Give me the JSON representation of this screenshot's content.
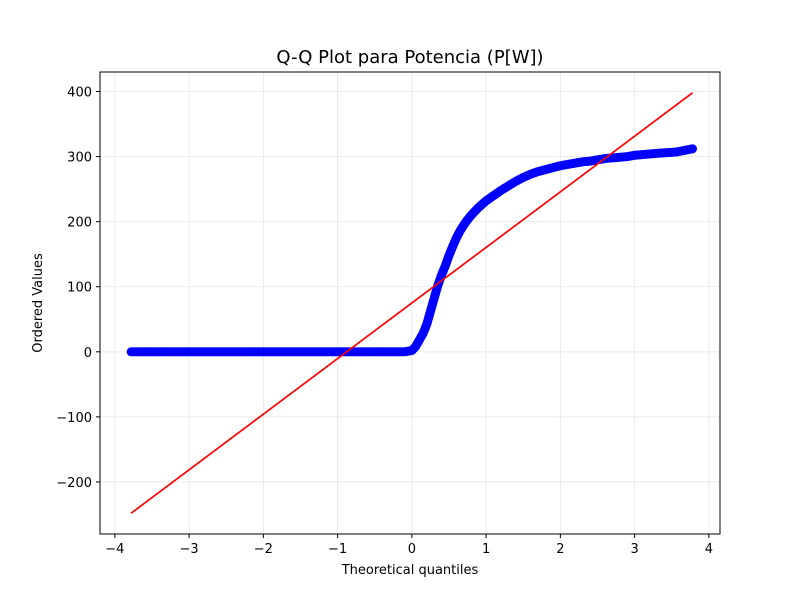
{
  "chart_data": {
    "type": "scatter",
    "title": "Q-Q Plot para Potencia (P[W])",
    "xlabel": "Theoretical quantiles",
    "ylabel": "Ordered Values",
    "xlim": [
      -4.2,
      4.15
    ],
    "ylim": [
      -280,
      430
    ],
    "xticks": [
      -4,
      -3,
      -2,
      -1,
      0,
      1,
      2,
      3,
      4
    ],
    "xtick_labels": [
      "−4",
      "−3",
      "−2",
      "−1",
      "0",
      "1",
      "2",
      "3",
      "4"
    ],
    "yticks": [
      -200,
      -100,
      0,
      100,
      200,
      300,
      400
    ],
    "ytick_labels": [
      "−200",
      "−100",
      "0",
      "100",
      "200",
      "300",
      "400"
    ],
    "grid": true,
    "series": [
      {
        "kind": "points",
        "color": "#0000ff",
        "x": [
          -3.78,
          -3.56,
          -3.43,
          -3.33,
          -3.24,
          -3.16,
          -3.0,
          -2.8,
          -2.5,
          -2.2,
          -1.9,
          -1.6,
          -1.3,
          -1.0,
          -0.7,
          -0.4,
          -0.1,
          0.0,
          0.05,
          0.1,
          0.15,
          0.2,
          0.25,
          0.3,
          0.35,
          0.4,
          0.45,
          0.5,
          0.55,
          0.6,
          0.65,
          0.7,
          0.75,
          0.8,
          0.85,
          0.9,
          0.95,
          1.0,
          1.1,
          1.2,
          1.3,
          1.4,
          1.5,
          1.6,
          1.7,
          1.8,
          1.9,
          2.0,
          2.1,
          2.2,
          2.3,
          2.4,
          2.5,
          2.6,
          2.7,
          2.8,
          2.9,
          3.0,
          3.1,
          3.2,
          3.3,
          3.43,
          3.56,
          3.78
        ],
        "y": [
          0,
          0,
          0,
          0,
          0,
          0,
          0,
          0,
          0,
          0,
          0,
          0,
          0,
          0,
          0,
          0,
          0,
          2,
          8,
          18,
          28,
          42,
          62,
          82,
          102,
          118,
          132,
          148,
          162,
          175,
          186,
          195,
          203,
          210,
          216,
          222,
          227,
          232,
          240,
          248,
          255,
          262,
          268,
          273,
          277,
          280,
          283,
          286,
          288,
          290,
          292,
          293,
          295,
          297,
          298,
          299,
          300,
          302,
          303,
          304,
          305,
          306,
          307,
          312
        ]
      },
      {
        "kind": "line",
        "color": "#ff0000",
        "x": [
          -3.78,
          3.78
        ],
        "y": [
          -248,
          398
        ]
      }
    ]
  }
}
